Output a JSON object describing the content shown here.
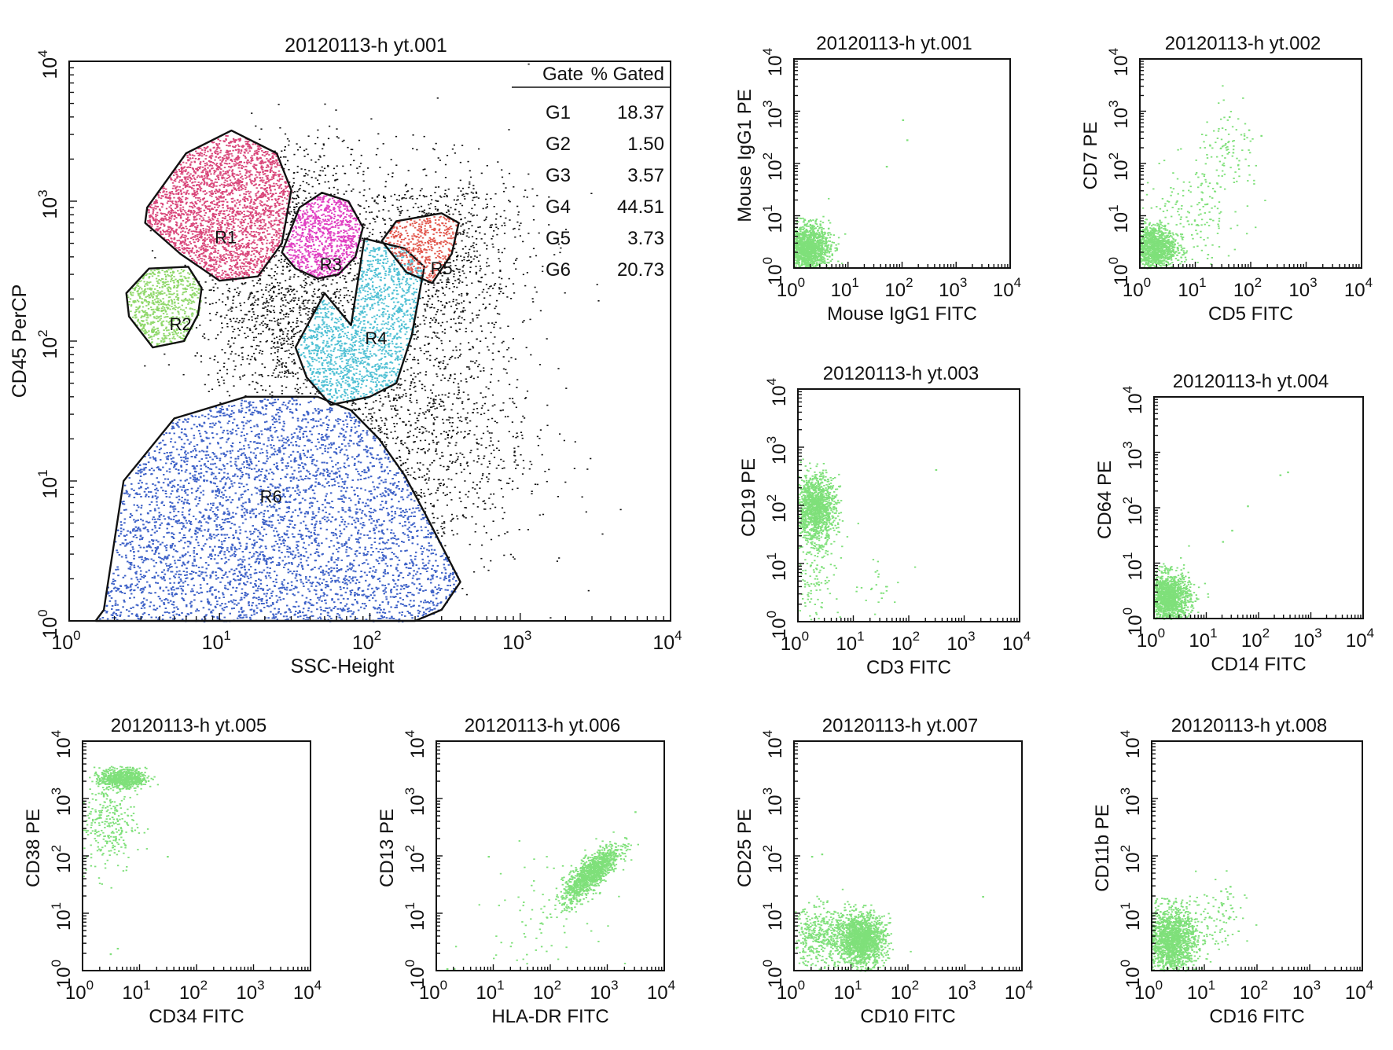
{
  "figure": {
    "panel_order": [
      "main",
      "p001",
      "p002",
      "p003",
      "p004",
      "p005",
      "p006",
      "p007",
      "p008"
    ]
  },
  "chart_data": [
    {
      "id": "main",
      "type": "scatter",
      "title": "20120113-h yt.001",
      "xlabel": "SSC-Height",
      "ylabel": "CD45 PerCP",
      "xscale": "log",
      "yscale": "log",
      "xlim": [
        1,
        10000
      ],
      "ylim": [
        1,
        10000
      ],
      "ticks": [
        1,
        10,
        100,
        1000,
        10000
      ],
      "tick_base": "10",
      "tick_exps": [
        "0",
        "1",
        "2",
        "3",
        "4"
      ],
      "gate_table": {
        "headers": [
          "Gate",
          "% Gated"
        ],
        "rows": [
          {
            "gate": "G1",
            "pct": "18.37"
          },
          {
            "gate": "G2",
            "pct": "1.50"
          },
          {
            "gate": "G3",
            "pct": "3.57"
          },
          {
            "gate": "G4",
            "pct": "44.51"
          },
          {
            "gate": "G5",
            "pct": "3.73"
          },
          {
            "gate": "G6",
            "pct": "20.73"
          }
        ]
      },
      "background_events": {
        "color": "#111111",
        "clouds": [
          {
            "x": 30,
            "y": 900,
            "sx": 0.22,
            "sy": 0.25,
            "n": 500
          },
          {
            "x": 80,
            "y": 180,
            "sx": 0.45,
            "sy": 0.45,
            "n": 1400
          },
          {
            "x": 300,
            "y": 500,
            "sx": 0.3,
            "sy": 0.3,
            "n": 700
          },
          {
            "x": 150,
            "y": 20,
            "sx": 0.45,
            "sy": 0.5,
            "n": 1600
          },
          {
            "x": 22,
            "y": 150,
            "sx": 0.25,
            "sy": 0.3,
            "n": 600
          }
        ]
      },
      "regions": [
        {
          "label": "R1",
          "color": "#d9467a",
          "label_at": [
            11,
            500
          ],
          "n": 2600,
          "polygon": [
            [
              3.3,
              900
            ],
            [
              6.0,
              2200
            ],
            [
              12,
              3200
            ],
            [
              24,
              2200
            ],
            [
              30,
              1200
            ],
            [
              26,
              500
            ],
            [
              18,
              290
            ],
            [
              10,
              270
            ],
            [
              5.5,
              420
            ],
            [
              3.2,
              700
            ]
          ]
        },
        {
          "label": "R2",
          "color": "#8fd86a",
          "label_at": [
            5.5,
            120
          ],
          "n": 700,
          "polygon": [
            [
              2.4,
              220
            ],
            [
              3.4,
              330
            ],
            [
              6.2,
              340
            ],
            [
              7.6,
              240
            ],
            [
              7.2,
              155
            ],
            [
              5.8,
              100
            ],
            [
              3.6,
              90
            ],
            [
              2.5,
              150
            ]
          ]
        },
        {
          "label": "R3",
          "color": "#e03fc2",
          "label_at": [
            55,
            320
          ],
          "n": 900,
          "polygon": [
            [
              26,
              430
            ],
            [
              34,
              900
            ],
            [
              48,
              1150
            ],
            [
              72,
              1000
            ],
            [
              90,
              650
            ],
            [
              80,
              400
            ],
            [
              62,
              300
            ],
            [
              45,
              280
            ],
            [
              32,
              330
            ]
          ]
        },
        {
          "label": "R4",
          "color": "#4fc0d4",
          "label_at": [
            110,
            95
          ],
          "n": 1600,
          "polygon": [
            [
              50,
              220
            ],
            [
              75,
              130
            ],
            [
              92,
              540
            ],
            [
              170,
              460
            ],
            [
              230,
              340
            ],
            [
              190,
              110
            ],
            [
              150,
              50
            ],
            [
              100,
              40
            ],
            [
              55,
              35
            ],
            [
              38,
              55
            ],
            [
              32,
              90
            ]
          ]
        },
        {
          "label": "R5",
          "color": "#e2584e",
          "label_at": [
            300,
            300
          ],
          "n": 420,
          "polygon": [
            [
              120,
              520
            ],
            [
              150,
              720
            ],
            [
              300,
              820
            ],
            [
              390,
              700
            ],
            [
              350,
              420
            ],
            [
              260,
              260
            ],
            [
              175,
              310
            ]
          ]
        },
        {
          "label": "R6",
          "color": "#3f63c8",
          "label_at": [
            22,
            7
          ],
          "n": 8000,
          "polygon": [
            [
              1.5,
              1.0
            ],
            [
              1.7,
              1.2
            ],
            [
              2.3,
              10
            ],
            [
              5,
              28
            ],
            [
              15,
              40
            ],
            [
              45,
              40
            ],
            [
              75,
              32
            ],
            [
              115,
              20
            ],
            [
              170,
              11
            ],
            [
              230,
              6
            ],
            [
              400,
              1.9
            ],
            [
              300,
              1.2
            ],
            [
              200,
              1.0
            ]
          ]
        }
      ]
    },
    {
      "id": "p001",
      "type": "scatter",
      "title": "20120113-h yt.001",
      "xlabel": "Mouse IgG1 FITC",
      "ylabel": "Mouse IgG1 PE",
      "xscale": "log",
      "yscale": "log",
      "xlim": [
        1,
        10000
      ],
      "ylim": [
        1,
        10000
      ],
      "ticks": [
        1,
        10,
        100,
        1000,
        10000
      ],
      "tick_base": "10",
      "tick_exps": [
        "0",
        "1",
        "2",
        "3",
        "4"
      ],
      "color": "#7fe07a",
      "clouds": [
        {
          "x": 1.6,
          "y": 2.5,
          "sx": 0.22,
          "sy": 0.22,
          "n": 1500
        }
      ],
      "points": [
        [
          100,
          700
        ],
        [
          120,
          290
        ],
        [
          50,
          90
        ]
      ]
    },
    {
      "id": "p002",
      "type": "scatter",
      "title": "20120113-h yt.002",
      "xlabel": "CD5 FITC",
      "ylabel": "CD7 PE",
      "xscale": "log",
      "yscale": "log",
      "xlim": [
        1,
        10000
      ],
      "ylim": [
        1,
        10000
      ],
      "ticks": [
        1,
        10,
        100,
        1000,
        10000
      ],
      "tick_base": "10",
      "tick_exps": [
        "0",
        "1",
        "2",
        "3",
        "4"
      ],
      "color": "#7fe07a",
      "clouds": [
        {
          "x": 1.6,
          "y": 2.5,
          "sx": 0.22,
          "sy": 0.22,
          "n": 1300
        },
        {
          "x": 40,
          "y": 150,
          "sx": 0.3,
          "sy": 0.4,
          "n": 110
        },
        {
          "x": 8,
          "y": 10,
          "sx": 0.45,
          "sy": 0.5,
          "n": 160
        }
      ],
      "points": [
        [
          40,
          800
        ],
        [
          90,
          450
        ],
        [
          150,
          350
        ]
      ]
    },
    {
      "id": "p003",
      "type": "scatter",
      "title": "20120113-h yt.003",
      "xlabel": "CD3 FITC",
      "ylabel": "CD19 PE",
      "xscale": "log",
      "yscale": "log",
      "xlim": [
        1,
        10000
      ],
      "ylim": [
        1,
        10000
      ],
      "ticks": [
        1,
        10,
        100,
        1000,
        10000
      ],
      "tick_base": "10",
      "tick_exps": [
        "0",
        "1",
        "2",
        "3",
        "4"
      ],
      "color": "#7fe07a",
      "clouds": [
        {
          "x": 2,
          "y": 90,
          "sx": 0.18,
          "sy": 0.28,
          "n": 1300
        },
        {
          "x": 1.8,
          "y": 8,
          "sx": 0.25,
          "sy": 0.45,
          "n": 140
        },
        {
          "x": 30,
          "y": 4,
          "sx": 0.25,
          "sy": 0.2,
          "n": 25
        }
      ],
      "points": [
        [
          300,
          420
        ]
      ]
    },
    {
      "id": "p004",
      "type": "scatter",
      "title": "20120113-h yt.004",
      "xlabel": "CD14 FITC",
      "ylabel": "CD64 PE",
      "xscale": "log",
      "yscale": "log",
      "xlim": [
        1,
        10000
      ],
      "ylim": [
        1,
        10000
      ],
      "ticks": [
        1,
        10,
        100,
        1000,
        10000
      ],
      "tick_base": "10",
      "tick_exps": [
        "0",
        "1",
        "2",
        "3",
        "4"
      ],
      "color": "#7fe07a",
      "clouds": [
        {
          "x": 1.7,
          "y": 2.4,
          "sx": 0.22,
          "sy": 0.22,
          "n": 1500
        }
      ],
      "points": [
        [
          250,
          400
        ],
        [
          350,
          450
        ],
        [
          60,
          110
        ],
        [
          30,
          40
        ],
        [
          20,
          25
        ]
      ]
    },
    {
      "id": "p005",
      "type": "scatter",
      "title": "20120113-h yt.005",
      "xlabel": "CD34 FITC",
      "ylabel": "CD38 PE",
      "xscale": "log",
      "yscale": "log",
      "xlim": [
        1,
        10000
      ],
      "ylim": [
        1,
        10000
      ],
      "ticks": [
        1,
        10,
        100,
        1000,
        10000
      ],
      "tick_base": "10",
      "tick_exps": [
        "0",
        "1",
        "2",
        "3",
        "4"
      ],
      "color": "#7fe07a",
      "clouds": [
        {
          "x": 5,
          "y": 2300,
          "sx": 0.2,
          "sy": 0.08,
          "n": 700
        },
        {
          "x": 2.6,
          "y": 400,
          "sx": 0.25,
          "sy": 0.45,
          "n": 320
        }
      ],
      "points": [
        [
          30,
          100
        ],
        [
          3,
          2
        ],
        [
          4,
          2.5
        ]
      ]
    },
    {
      "id": "p006",
      "type": "scatter",
      "title": "20120113-h yt.006",
      "xlabel": "HLA-DR FITC",
      "ylabel": "CD13 PE",
      "xscale": "log",
      "yscale": "log",
      "xlim": [
        1,
        10000
      ],
      "ylim": [
        1,
        10000
      ],
      "ticks": [
        1,
        10,
        100,
        1000,
        10000
      ],
      "tick_base": "10",
      "tick_exps": [
        "0",
        "1",
        "2",
        "3",
        "4"
      ],
      "color": "#7fe07a",
      "clouds": [
        {
          "x": 500,
          "y": 50,
          "sx": 0.25,
          "sy": 0.25,
          "n": 1200,
          "rho": 0.8
        },
        {
          "x": 50,
          "y": 10,
          "sx": 0.5,
          "sy": 0.5,
          "n": 70
        }
      ],
      "points": [
        [
          1.5,
          1.1
        ],
        [
          2,
          1.1
        ],
        [
          8,
          100
        ],
        [
          3000,
          600
        ]
      ]
    },
    {
      "id": "p007",
      "type": "scatter",
      "title": "20120113-h yt.007",
      "xlabel": "CD10 FITC",
      "ylabel": "CD25 PE",
      "xscale": "log",
      "yscale": "log",
      "xlim": [
        1,
        10000
      ],
      "ylim": [
        1,
        10000
      ],
      "ticks": [
        1,
        10,
        100,
        1000,
        10000
      ],
      "tick_base": "10",
      "tick_exps": [
        "0",
        "1",
        "2",
        "3",
        "4"
      ],
      "color": "#7fe07a",
      "clouds": [
        {
          "x": 15,
          "y": 3.5,
          "sx": 0.2,
          "sy": 0.22,
          "n": 1500
        },
        {
          "x": 3,
          "y": 4,
          "sx": 0.3,
          "sy": 0.25,
          "n": 500
        }
      ],
      "points": [
        [
          2,
          100
        ],
        [
          3,
          110
        ],
        [
          2000,
          20
        ]
      ]
    },
    {
      "id": "p008",
      "type": "scatter",
      "title": "20120113-h yt.008",
      "xlabel": "CD16 FITC",
      "ylabel": "CD11b PE",
      "xscale": "log",
      "yscale": "log",
      "xlim": [
        1,
        10000
      ],
      "ylim": [
        1,
        10000
      ],
      "ticks": [
        1,
        10,
        100,
        1000,
        10000
      ],
      "tick_base": "10",
      "tick_exps": [
        "0",
        "1",
        "2",
        "3",
        "4"
      ],
      "color": "#7fe07a",
      "clouds": [
        {
          "x": 2.2,
          "y": 3.5,
          "sx": 0.25,
          "sy": 0.28,
          "n": 1600
        },
        {
          "x": 18,
          "y": 8,
          "sx": 0.25,
          "sy": 0.35,
          "n": 90
        }
      ],
      "points": [
        [
          30,
          30
        ],
        [
          20,
          25
        ]
      ]
    }
  ]
}
